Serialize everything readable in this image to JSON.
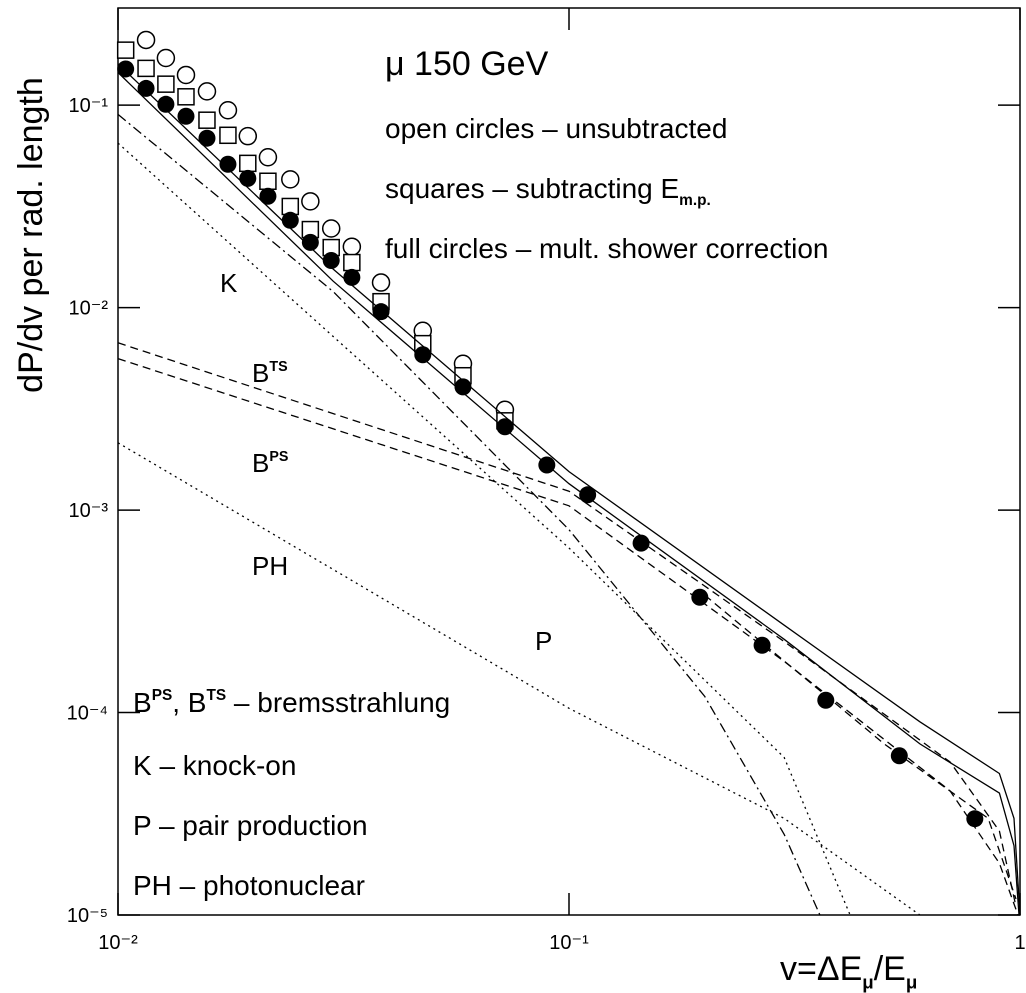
{
  "chart_data": {
    "type": "scatter",
    "log_x": true,
    "log_y": true,
    "xlim": [
      0.01,
      1
    ],
    "ylim": [
      1e-05,
      0.302
    ],
    "xticks": [
      {
        "value": 0.01,
        "label": "10⁻²"
      },
      {
        "value": 0.1,
        "label": "10⁻¹"
      },
      1
    ],
    "yticks": [
      {
        "value": 1e-05,
        "label": "10⁻⁵"
      },
      {
        "value": 0.0001,
        "label": "10⁻⁴"
      },
      {
        "value": 0.001,
        "label": "10⁻³"
      },
      {
        "value": 0.01,
        "label": "10⁻²"
      },
      {
        "value": 0.1,
        "label": "10⁻¹"
      }
    ],
    "ylabel": "dP/dv per rad. length",
    "xlabel": {
      "parts": [
        {
          "t": "v=ΔE"
        },
        {
          "sub": "μ"
        },
        {
          "t": "/E"
        },
        {
          "sub": "μ"
        }
      ]
    },
    "annotations": [
      {
        "parts": [
          {
            "t": "μ 150 GeV"
          }
        ]
      },
      {
        "parts": [
          {
            "t": "open circles – unsubtracted"
          }
        ]
      },
      {
        "parts": [
          {
            "t": "squares – subtracting E"
          },
          {
            "sub": "m.p."
          }
        ]
      },
      {
        "parts": [
          {
            "t": "full circles – mult. shower correction"
          }
        ]
      },
      {
        "parts": [
          {
            "t": "K"
          }
        ]
      },
      {
        "parts": [
          {
            "t": "B"
          },
          {
            "sup": "TS"
          }
        ]
      },
      {
        "parts": [
          {
            "t": "B"
          },
          {
            "sup": "PS"
          }
        ]
      },
      {
        "parts": [
          {
            "t": "PH"
          }
        ]
      },
      {
        "parts": [
          {
            "t": "P"
          }
        ]
      },
      {
        "parts": [
          {
            "t": "B"
          },
          {
            "sup": "PS"
          },
          {
            "t": ", B"
          },
          {
            "sup": "TS"
          },
          {
            "t": " – bremsstrahlung"
          }
        ]
      },
      {
        "parts": [
          {
            "t": "K – knock-on"
          }
        ]
      },
      {
        "parts": [
          {
            "t": "P – pair production"
          }
        ]
      },
      {
        "parts": [
          {
            "t": "PH – photonuclear"
          }
        ]
      }
    ],
    "series": [
      {
        "marker": "open-circle",
        "color": "#000000",
        "x": [
          0.01154,
          0.01277,
          0.01415,
          0.01575,
          0.01753,
          0.0194,
          0.0215,
          0.0241,
          0.0267,
          0.0297,
          0.033,
          0.0383,
          0.0474,
          0.0582,
          0.0721
        ],
        "values": [
          0.21,
          0.171,
          0.141,
          0.117,
          0.0944,
          0.0703,
          0.0553,
          0.043,
          0.0335,
          0.0246,
          0.02,
          0.0133,
          0.00769,
          0.00528,
          0.00313
        ]
      },
      {
        "marker": "square",
        "color": "#000000",
        "x": [
          0.0104,
          0.01154,
          0.01277,
          0.01415,
          0.01575,
          0.01753,
          0.0194,
          0.0215,
          0.0241,
          0.0267,
          0.0297,
          0.033,
          0.0383,
          0.0474,
          0.0582,
          0.0721
        ],
        "values": [
          0.187,
          0.152,
          0.127,
          0.11,
          0.0843,
          0.071,
          0.0516,
          0.0421,
          0.0316,
          0.0243,
          0.0198,
          0.0167,
          0.0107,
          0.00664,
          0.00461,
          0.00276
        ]
      },
      {
        "marker": "filled-circle",
        "color": "#000000",
        "x": [
          0.0104,
          0.01154,
          0.01277,
          0.01415,
          0.01575,
          0.01753,
          0.0194,
          0.0215,
          0.0241,
          0.0267,
          0.0297,
          0.033,
          0.0383,
          0.0474,
          0.0582,
          0.0721,
          0.0893,
          0.11,
          0.1445,
          0.195,
          0.268,
          0.371,
          0.54,
          0.794
        ],
        "values": [
          0.151,
          0.121,
          0.101,
          0.0882,
          0.0687,
          0.0511,
          0.0435,
          0.0355,
          0.027,
          0.021,
          0.0171,
          0.0141,
          0.00955,
          0.00585,
          0.00406,
          0.00258,
          0.00167,
          0.00119,
          0.000687,
          0.000371,
          0.000215,
          0.000115,
          6.12e-05,
          2.99e-05
        ]
      },
      {
        "line_style": "solid",
        "color": "#000000",
        "x": [
          0.01,
          0.03,
          0.1,
          0.3,
          0.6,
          0.9,
          0.97,
          1
        ],
        "values": [
          0.16,
          0.0155,
          0.00155,
          0.00027,
          9e-05,
          5e-05,
          3e-05,
          1e-05
        ]
      },
      {
        "line_style": "solid",
        "color": "#000000",
        "x": [
          0.01,
          0.03,
          0.1,
          0.3,
          0.6,
          0.9,
          0.97,
          0.995
        ],
        "values": [
          0.145,
          0.0135,
          0.00135,
          0.00023,
          7e-05,
          4e-05,
          2.2e-05,
          1e-05
        ]
      },
      {
        "line_style": "dashed",
        "color": "#000000",
        "x": [
          0.2,
          0.5,
          0.85,
          0.98
        ],
        "values": [
          0.00038,
          7e-05,
          3e-05,
          1.2e-05
        ]
      },
      {
        "line_style": "dashed",
        "color": "#000000",
        "x": [
          0.01,
          0.1,
          0.3,
          0.7,
          0.9,
          0.98
        ],
        "values": [
          0.0067,
          0.00124,
          0.000224,
          5.7e-05,
          2.6e-05,
          1.1e-05
        ]
      },
      {
        "line_style": "dashed",
        "color": "#000000",
        "x": [
          0.01,
          0.1,
          0.3,
          0.7,
          0.9,
          0.99
        ],
        "values": [
          0.0056,
          0.00105,
          0.000179,
          4.1e-05,
          1.8e-05,
          1e-05
        ]
      },
      {
        "line_style": "dotted",
        "color": "#000000",
        "x": [
          0.01,
          0.03,
          0.1,
          0.3,
          0.42
        ],
        "values": [
          0.065,
          0.0072,
          0.00065,
          6e-05,
          1e-05
        ]
      },
      {
        "line_style": "dash-dot",
        "color": "#000000",
        "x": [
          0.01,
          0.03,
          0.1,
          0.2,
          0.3,
          0.36
        ],
        "values": [
          0.09,
          0.012,
          0.0008,
          0.00012,
          2.5e-05,
          1e-05
        ]
      },
      {
        "line_style": "dotted",
        "color": "#000000",
        "x": [
          0.01,
          0.1,
          0.3,
          0.6
        ],
        "values": [
          0.00215,
          0.000105,
          3e-05,
          1e-05
        ]
      }
    ]
  }
}
